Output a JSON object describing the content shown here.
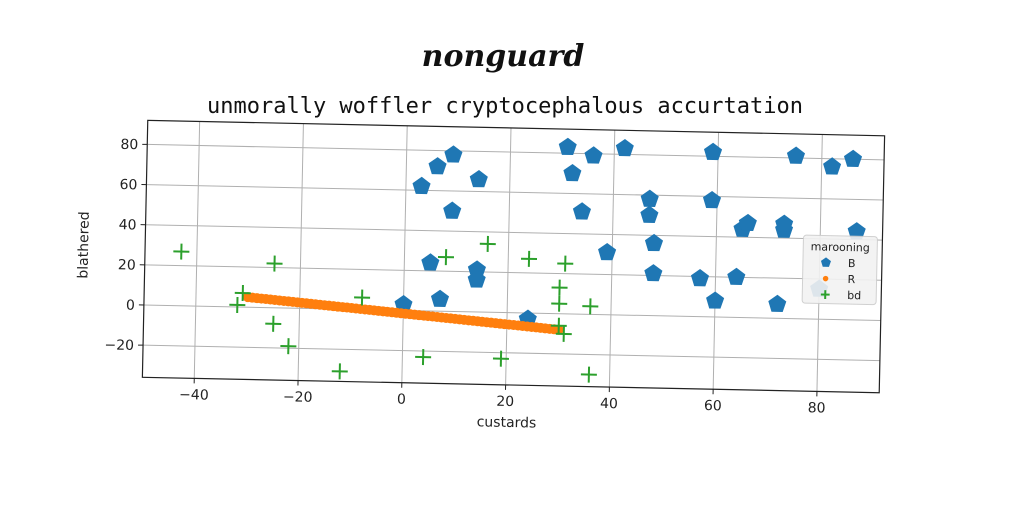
{
  "chart_data": {
    "type": "scatter",
    "suptitle": "nonguard",
    "title": "unmorally woffler cryptocephalous accurtation",
    "xlabel": "custards",
    "ylabel": "blathered",
    "xlim": [
      -50,
      92
    ],
    "ylim": [
      -36,
      92
    ],
    "xticks": [
      -40,
      -20,
      0,
      20,
      40,
      60,
      80
    ],
    "yticks": [
      -20,
      0,
      20,
      40,
      60,
      80
    ],
    "grid": true,
    "legend": {
      "title": "marooning",
      "placement": "center-right"
    },
    "series": [
      {
        "name": "B",
        "marker": "pentagon",
        "color": "#1f77b4",
        "points": [
          [
            0,
            3
          ],
          [
            6,
            72
          ],
          [
            9,
            78
          ],
          [
            3,
            62
          ],
          [
            14,
            66
          ],
          [
            9,
            50
          ],
          [
            5,
            24
          ],
          [
            7,
            6
          ],
          [
            14,
            21
          ],
          [
            14,
            16
          ],
          [
            31,
            83
          ],
          [
            32,
            70
          ],
          [
            36,
            79
          ],
          [
            42,
            83
          ],
          [
            34,
            51
          ],
          [
            39,
            31
          ],
          [
            47,
            58
          ],
          [
            47,
            50
          ],
          [
            48,
            36
          ],
          [
            48,
            21
          ],
          [
            24,
            -3
          ],
          [
            59,
            82
          ],
          [
            59,
            58
          ],
          [
            57,
            19
          ],
          [
            60,
            8
          ],
          [
            64,
            20
          ],
          [
            65,
            44
          ],
          [
            66,
            47
          ],
          [
            73,
            44
          ],
          [
            73,
            47
          ],
          [
            72,
            7
          ],
          [
            75,
            81
          ],
          [
            82,
            76
          ],
          [
            86,
            80
          ],
          [
            87,
            44
          ],
          [
            80,
            15
          ]
        ]
      },
      {
        "name": "R",
        "marker": "circle",
        "color": "#ff7f0e",
        "line": {
          "x": [
            -30,
            30
          ],
          "y": [
            5,
            -8
          ],
          "count": 70
        }
      },
      {
        "name": "bd",
        "marker": "plus",
        "color": "#2ca02c",
        "points": [
          [
            -43,
            27
          ],
          [
            -32,
            1
          ],
          [
            -31,
            7
          ],
          [
            -25,
            22
          ],
          [
            -25,
            -8
          ],
          [
            -22,
            -19
          ],
          [
            -12,
            -31
          ],
          [
            -8,
            6
          ],
          [
            4,
            -23
          ],
          [
            8,
            27
          ],
          [
            16,
            34
          ],
          [
            19,
            -23
          ],
          [
            24,
            27
          ],
          [
            30,
            13
          ],
          [
            30,
            5
          ],
          [
            30,
            -6
          ],
          [
            31,
            25
          ],
          [
            31,
            -10
          ],
          [
            36,
            4
          ],
          [
            36,
            -30
          ]
        ]
      }
    ]
  }
}
